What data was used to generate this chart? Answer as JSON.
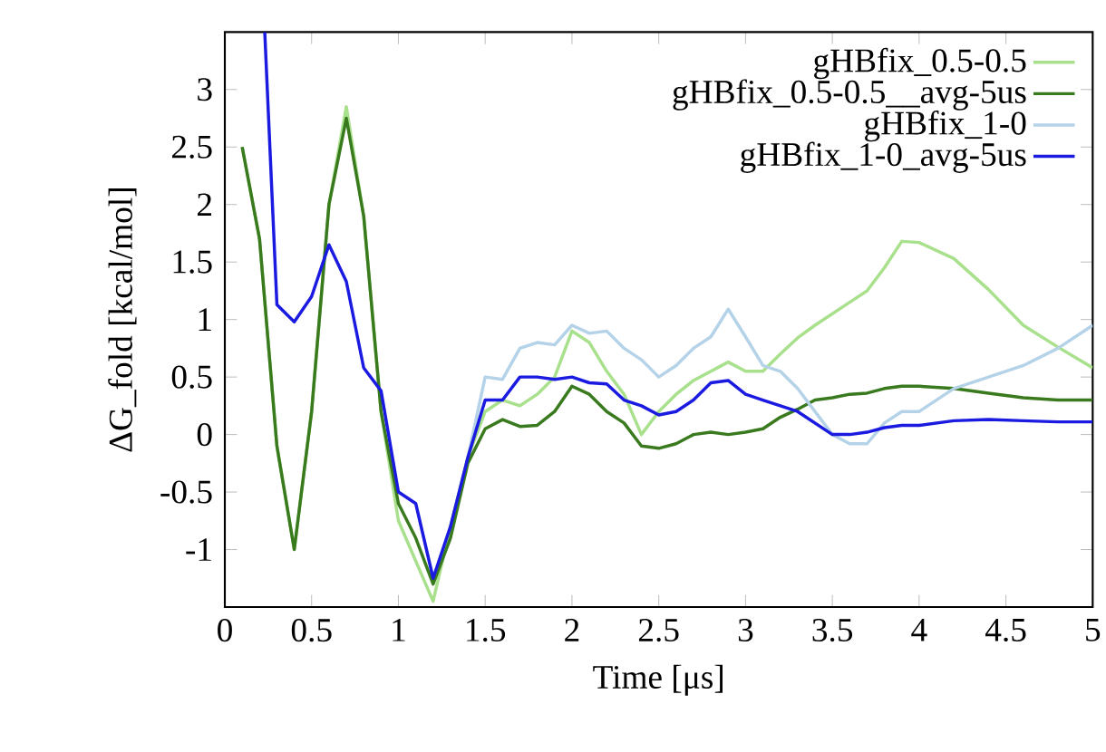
{
  "chart_data": {
    "type": "line",
    "xlabel": "Time [μs]",
    "ylabel": "ΔG_fold [kcal/mol]",
    "xlim": [
      0,
      5
    ],
    "ylim": [
      -1.5,
      3.5
    ],
    "xticks": [
      0,
      0.5,
      1,
      1.5,
      2,
      2.5,
      3,
      3.5,
      4,
      4.5,
      5
    ],
    "yticks": [
      -1,
      -0.5,
      0,
      0.5,
      1,
      1.5,
      2,
      2.5,
      3
    ],
    "legend": "top right",
    "series": [
      {
        "name": "gHBfix_0.5-0.5",
        "color": "#a8e08c",
        "x": [
          0.1,
          0.2,
          0.3,
          0.4,
          0.5,
          0.6,
          0.7,
          0.8,
          0.9,
          1.0,
          1.1,
          1.2,
          1.3,
          1.4,
          1.5,
          1.6,
          1.7,
          1.8,
          1.9,
          2.0,
          2.1,
          2.2,
          2.3,
          2.4,
          2.5,
          2.6,
          2.7,
          2.8,
          2.9,
          3.0,
          3.1,
          3.2,
          3.3,
          3.4,
          3.5,
          3.6,
          3.7,
          3.8,
          3.9,
          4.0,
          4.2,
          4.4,
          4.6,
          4.8,
          5.0
        ],
        "values": [
          2.5,
          1.7,
          -0.1,
          -1.0,
          0.2,
          2.0,
          2.85,
          1.9,
          0.2,
          -0.75,
          -1.1,
          -1.45,
          -0.8,
          -0.2,
          0.2,
          0.3,
          0.25,
          0.35,
          0.5,
          0.9,
          0.8,
          0.55,
          0.35,
          0.0,
          0.2,
          0.35,
          0.47,
          0.55,
          0.63,
          0.55,
          0.55,
          0.7,
          0.84,
          0.95,
          1.05,
          1.15,
          1.25,
          1.45,
          1.68,
          1.67,
          1.53,
          1.26,
          0.95,
          0.76,
          0.58
        ]
      },
      {
        "name": "gHBfix_0.5-0.5__avg-5us",
        "color": "#3a7a1e",
        "x": [
          0.1,
          0.2,
          0.3,
          0.4,
          0.5,
          0.6,
          0.7,
          0.8,
          0.9,
          1.0,
          1.1,
          1.2,
          1.3,
          1.4,
          1.5,
          1.6,
          1.7,
          1.8,
          1.9,
          2.0,
          2.1,
          2.2,
          2.3,
          2.4,
          2.5,
          2.6,
          2.7,
          2.8,
          2.9,
          3.0,
          3.1,
          3.2,
          3.3,
          3.4,
          3.5,
          3.6,
          3.7,
          3.8,
          3.9,
          4.0,
          4.2,
          4.4,
          4.6,
          4.8,
          5.0
        ],
        "values": [
          2.5,
          1.7,
          -0.1,
          -1.0,
          0.2,
          2.0,
          2.75,
          1.9,
          0.2,
          -0.6,
          -0.9,
          -1.3,
          -0.9,
          -0.25,
          0.05,
          0.13,
          0.07,
          0.08,
          0.2,
          0.42,
          0.35,
          0.2,
          0.1,
          -0.1,
          -0.12,
          -0.08,
          0.0,
          0.02,
          0.0,
          0.02,
          0.05,
          0.15,
          0.22,
          0.3,
          0.32,
          0.35,
          0.36,
          0.4,
          0.42,
          0.42,
          0.4,
          0.36,
          0.32,
          0.3,
          0.3
        ]
      },
      {
        "name": "gHBfix_1-0",
        "color": "#b4d2e8",
        "x": [
          1.4,
          1.5,
          1.6,
          1.7,
          1.8,
          1.9,
          2.0,
          2.1,
          2.2,
          2.3,
          2.4,
          2.5,
          2.6,
          2.7,
          2.8,
          2.9,
          3.0,
          3.1,
          3.2,
          3.3,
          3.4,
          3.5,
          3.6,
          3.7,
          3.8,
          3.9,
          4.0,
          4.2,
          4.4,
          4.6,
          4.8,
          5.0
        ],
        "values": [
          -0.2,
          0.5,
          0.48,
          0.75,
          0.8,
          0.78,
          0.95,
          0.88,
          0.9,
          0.75,
          0.65,
          0.5,
          0.6,
          0.75,
          0.85,
          1.09,
          0.85,
          0.6,
          0.55,
          0.4,
          0.2,
          0.0,
          -0.08,
          -0.08,
          0.1,
          0.2,
          0.2,
          0.4,
          0.5,
          0.6,
          0.75,
          0.95
        ]
      },
      {
        "name": "gHBfix_1-0_avg-5us",
        "color": "#1a1ae0",
        "x": [
          0.23,
          0.3,
          0.4,
          0.5,
          0.6,
          0.7,
          0.8,
          0.9,
          1.0,
          1.1,
          1.2,
          1.3,
          1.4,
          1.5,
          1.6,
          1.7,
          1.8,
          1.9,
          2.0,
          2.1,
          2.2,
          2.3,
          2.4,
          2.5,
          2.6,
          2.7,
          2.8,
          2.9,
          3.0,
          3.1,
          3.2,
          3.3,
          3.4,
          3.5,
          3.6,
          3.7,
          3.8,
          3.9,
          4.0,
          4.2,
          4.4,
          4.6,
          4.8,
          5.0
        ],
        "values": [
          3.5,
          1.13,
          0.98,
          1.2,
          1.65,
          1.33,
          0.58,
          0.38,
          -0.5,
          -0.6,
          -1.25,
          -0.8,
          -0.2,
          0.3,
          0.3,
          0.5,
          0.5,
          0.48,
          0.5,
          0.45,
          0.44,
          0.3,
          0.25,
          0.17,
          0.2,
          0.3,
          0.45,
          0.47,
          0.35,
          0.3,
          0.25,
          0.2,
          0.1,
          0.0,
          0.0,
          0.02,
          0.06,
          0.08,
          0.08,
          0.12,
          0.13,
          0.12,
          0.11,
          0.11
        ]
      }
    ]
  }
}
